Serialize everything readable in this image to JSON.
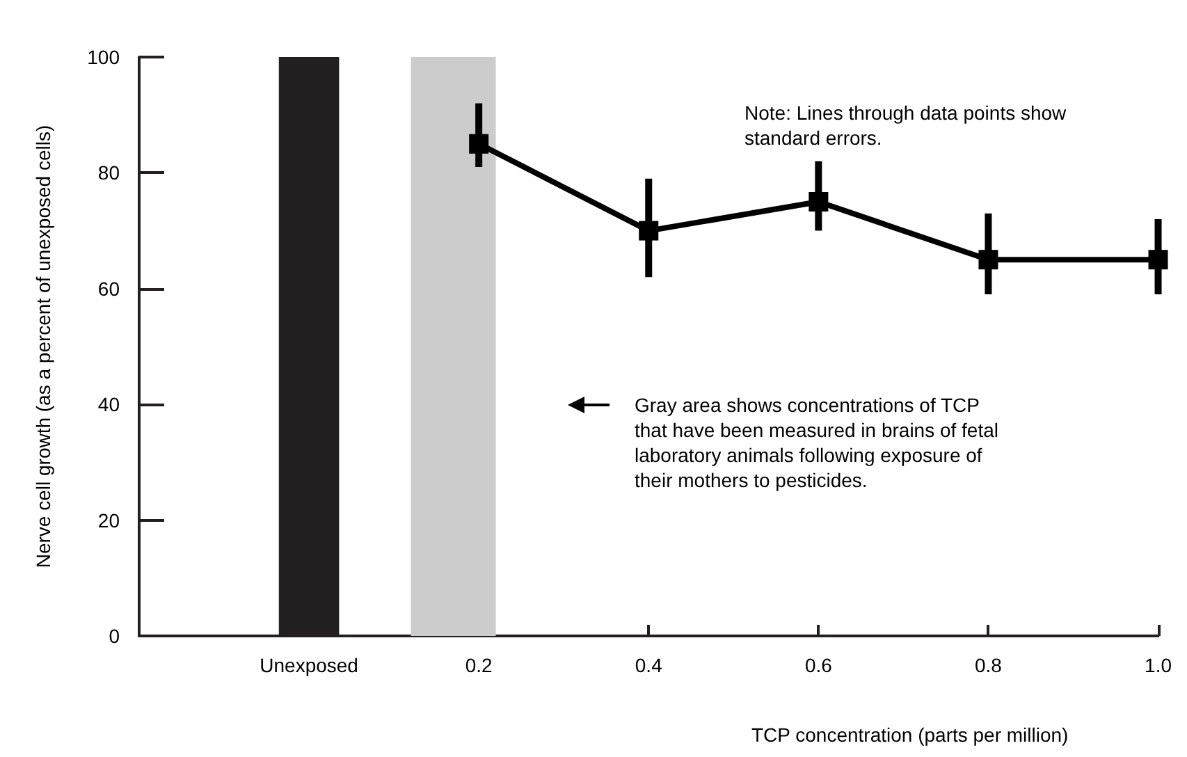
{
  "chart_data": {
    "type": "line",
    "xlabel": "TCP concentration (parts per million)",
    "ylabel": "Nerve cell growth (as a percent of unexposed cells)",
    "annotations": [
      "Note: Lines through data points show standard errors.",
      "Gray area shows concentrations of TCP that have been measured in brains of fetal laboratory animals following exposure of their mothers to pesticides."
    ],
    "series": [
      {
        "type": "bar",
        "x": [
          0
        ],
        "values": [
          100
        ],
        "color": "#231f20"
      },
      {
        "x": [
          0.2,
          0.4,
          0.6,
          0.8,
          1.0
        ],
        "values": [
          85,
          70,
          75,
          65,
          65
        ],
        "errors": [
          [
            81,
            92
          ],
          [
            62,
            79
          ],
          [
            70,
            82
          ],
          [
            59,
            73
          ],
          [
            59,
            72
          ]
        ],
        "color": "#000000"
      }
    ],
    "xlim": [
      -0.2,
      1.0
    ],
    "xticks": [
      {
        "value": 0,
        "label": "Unexposed"
      },
      0.2,
      0.4,
      0.6,
      0.8,
      {
        "value": 1.0,
        "label": "1.0"
      }
    ],
    "ylim": [
      0,
      100
    ],
    "yticks": [
      0,
      20,
      40,
      60,
      80,
      100
    ],
    "bands": [
      {
        "axis": "x",
        "from": 0.12,
        "to": 0.22,
        "color": "#cccccc"
      }
    ],
    "grid": false,
    "marker": "square",
    "line_style": "solid"
  }
}
